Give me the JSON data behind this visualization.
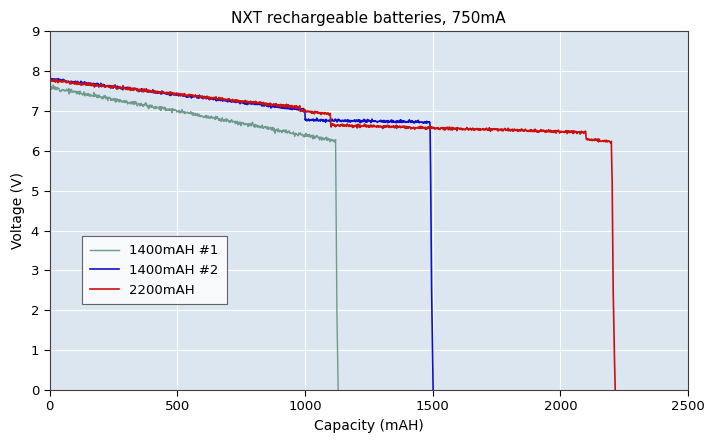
{
  "title": "NXT rechargeable batteries, 750mA",
  "xlabel": "Capacity (mAH)",
  "ylabel": "Voltage (V)",
  "xlim": [
    0,
    2500
  ],
  "ylim": [
    0,
    9
  ],
  "xticks": [
    0,
    500,
    1000,
    1500,
    2000,
    2500
  ],
  "yticks": [
    0,
    1,
    2,
    3,
    4,
    5,
    6,
    7,
    8,
    9
  ],
  "legend": [
    "1400mAH #1",
    "1400mAH #2",
    "2200mAH"
  ],
  "colors": [
    "#6e9b8a",
    "#1010cc",
    "#cc1010"
  ],
  "plot_bg": "#dce6f0",
  "fig_bg": "#ffffff",
  "grid_color": "#ffffff",
  "series1_end_x": 1130,
  "series2_end_x": 1500,
  "series3_end_x": 2215
}
